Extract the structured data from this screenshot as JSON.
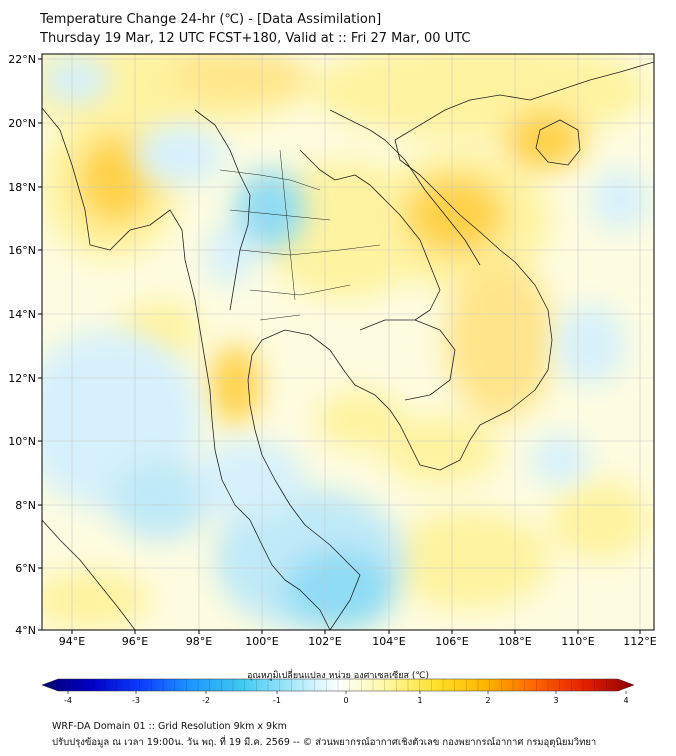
{
  "header": {
    "title_line1": "Temperature Change 24-hr (℃) - [Data Assimilation]",
    "title_line2": "Thursday 19 Mar, 12 UTC FCST+180, Valid at :: Fri 27 Mar, 00 UTC"
  },
  "map": {
    "lat_labels": [
      "22°N",
      "20°N",
      "18°N",
      "16°N",
      "14°N",
      "12°N",
      "10°N",
      "8°N",
      "6°N",
      "4°N"
    ],
    "lon_labels": [
      "94°E",
      "96°E",
      "98°E",
      "100°E",
      "102°E",
      "104°E",
      "106°E",
      "108°E",
      "110°E",
      "112°E"
    ],
    "background_color": "#fdfce0",
    "colors": {
      "warm_yellow": "#fff3a0",
      "warm_orange": "#ffd24a",
      "cool_light": "#d6f1fb",
      "cool_cyan": "#8fdcf4"
    }
  },
  "colorbar": {
    "label": "อุณหภูมิเปลี่ยนแปลง หน่วย องศาเซลเซียส (℃)",
    "ticks": [
      "-4",
      "-3",
      "-2",
      "-1",
      "0",
      "1",
      "2",
      "3",
      "4"
    ],
    "stops": [
      "#00006e",
      "#0000c8",
      "#0a3cff",
      "#1e96ff",
      "#3cc8f0",
      "#a0e6fa",
      "#ffffff",
      "#fff8a0",
      "#ffe028",
      "#ffb400",
      "#ff6400",
      "#e61e00",
      "#8c0000"
    ]
  },
  "footer": {
    "line1": "WRF-DA Domain 01 :: Grid Resolution 9km x 9km",
    "line2": "ปรับปรุงข้อมูล ณ เวลา 19:00น. วัน พฤ. ที่ 19 มี.ค. 2569 -- © ส่วนพยากรณ์อากาศเชิงตัวเลข กองพยากรณ์อากาศ กรมอุตุนิยมวิทยา"
  }
}
